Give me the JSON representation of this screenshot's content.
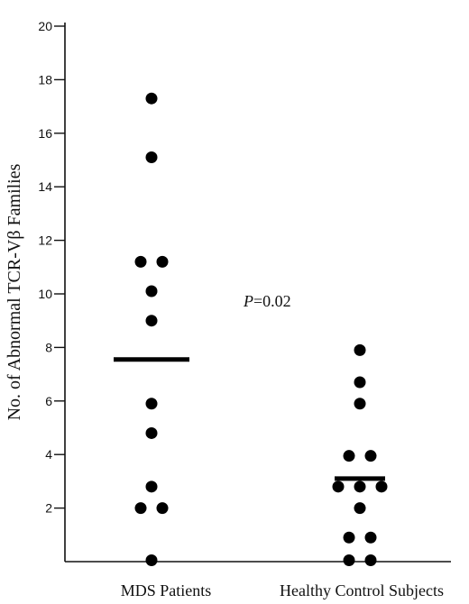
{
  "chart_data": {
    "type": "scatter",
    "ylabel": "No. of Abnormal TCR-Vβ Families",
    "xlabel": "",
    "ylim": [
      0,
      20
    ],
    "y_ticks": [
      2,
      4,
      6,
      8,
      10,
      12,
      14,
      16,
      18,
      20
    ],
    "grid": false,
    "categories": [
      "MDS Patients",
      "Healthy Control Subjects"
    ],
    "groups": [
      {
        "category": "MDS Patients",
        "points": [
          {
            "y": 17.3,
            "offset": 0
          },
          {
            "y": 15.1,
            "offset": 0
          },
          {
            "y": 11.2,
            "offset": -1
          },
          {
            "y": 11.2,
            "offset": 1
          },
          {
            "y": 10.1,
            "offset": 0
          },
          {
            "y": 9.0,
            "offset": 0
          },
          {
            "y": 5.9,
            "offset": 0
          },
          {
            "y": 4.8,
            "offset": 0
          },
          {
            "y": 2.8,
            "offset": 0
          },
          {
            "y": 2.0,
            "offset": -1
          },
          {
            "y": 2.0,
            "offset": 1
          },
          {
            "y": 0.05,
            "offset": 0
          }
        ],
        "mean": 7.55
      },
      {
        "category": "Healthy Control Subjects",
        "points": [
          {
            "y": 7.9,
            "offset": 0
          },
          {
            "y": 6.7,
            "offset": 0
          },
          {
            "y": 5.9,
            "offset": 0
          },
          {
            "y": 3.95,
            "offset": -1
          },
          {
            "y": 3.95,
            "offset": 1
          },
          {
            "y": 2.8,
            "offset": -2
          },
          {
            "y": 2.8,
            "offset": 0
          },
          {
            "y": 2.8,
            "offset": 2
          },
          {
            "y": 2.0,
            "offset": 0
          },
          {
            "y": 0.9,
            "offset": -1
          },
          {
            "y": 0.9,
            "offset": 1
          },
          {
            "y": 0.05,
            "offset": -1
          },
          {
            "y": 0.05,
            "offset": 1
          }
        ],
        "mean": 3.1
      }
    ],
    "annotation": {
      "italic": "P",
      "text": "=0.02"
    }
  }
}
